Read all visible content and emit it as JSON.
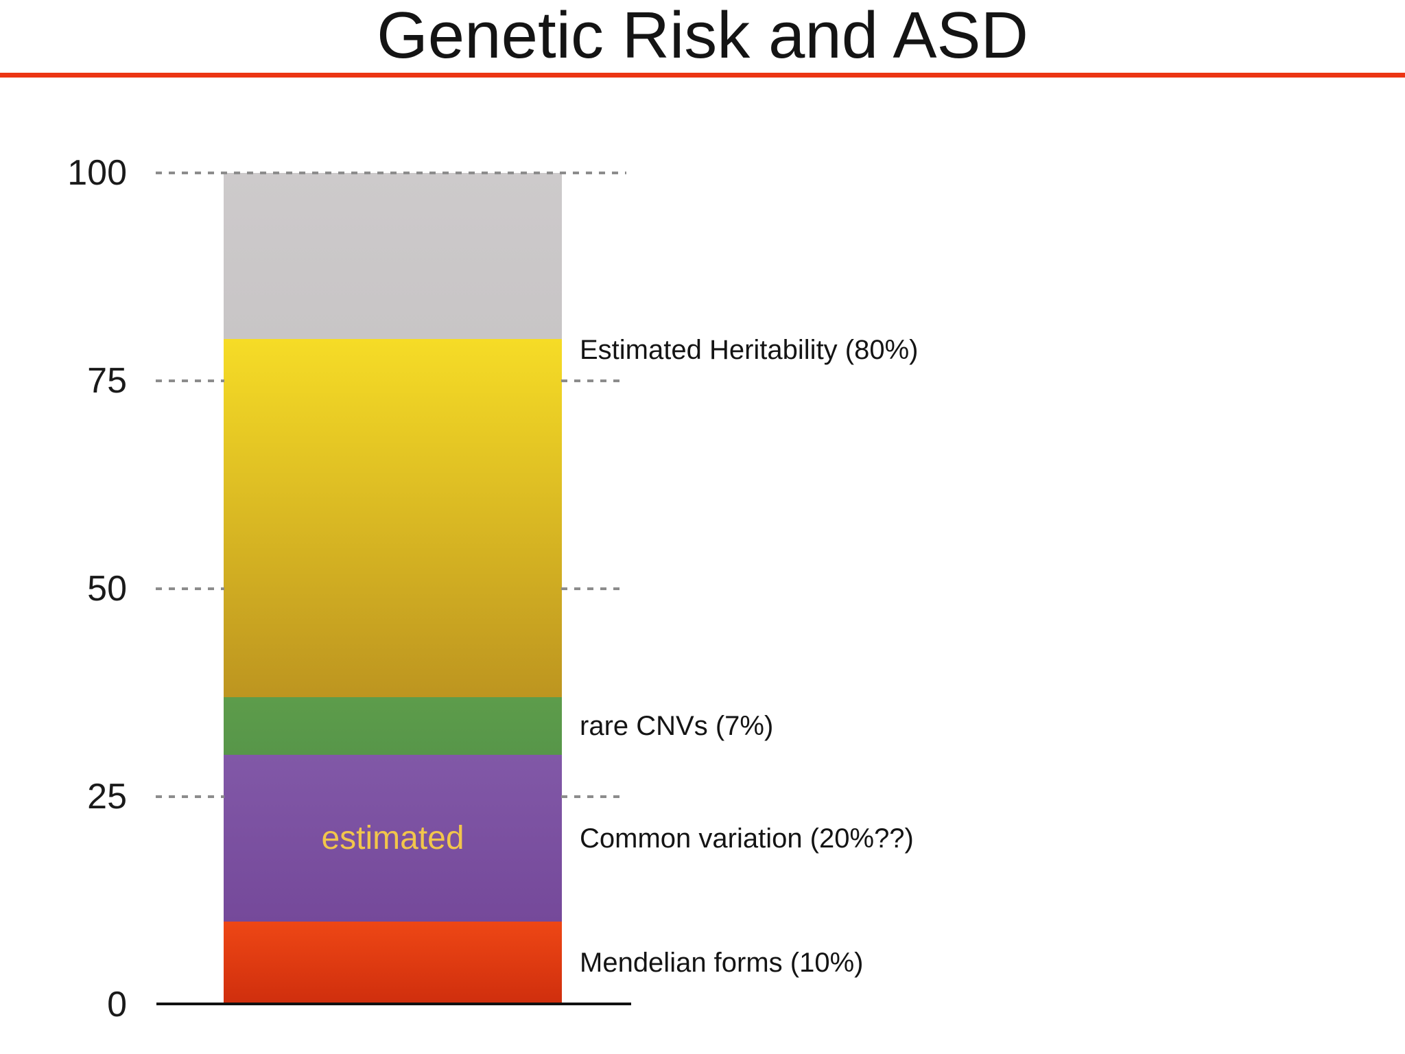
{
  "slide": {
    "accent_rule_color": "#EC3514",
    "background_color": "#FFFFFF"
  },
  "chart_data": {
    "type": "bar",
    "subtype": "single-stacked-bar",
    "title": "Genetic Risk and ASD",
    "xlabel": "",
    "ylabel": "",
    "ylim": [
      0,
      100
    ],
    "yticks": [
      0,
      25,
      50,
      75,
      100
    ],
    "grid": "dashed horizontal lines at yticks, left and right of bar; full dashed line at 100",
    "legend_position": "none",
    "annotation": {
      "text": "estimated",
      "color": "#F2C64B",
      "location": "inside common-variation segment"
    },
    "segments": [
      {
        "name": "mendelian-forms",
        "value": 10,
        "from": 0,
        "to": 10,
        "label": "Mendelian forms (10%)",
        "color_top": "#EE4715",
        "color_bottom": "#CF2E0D"
      },
      {
        "name": "common-variation",
        "value": 20,
        "from": 10,
        "to": 30,
        "label": "Common variation (20%??)",
        "color_top": "#8158A7",
        "color_bottom": "#75499A",
        "inner_text": "estimated",
        "inner_text_color": "#F2C64B"
      },
      {
        "name": "rare-cnvs",
        "value": 7,
        "from": 30,
        "to": 37,
        "label": "rare CNVs (7%)",
        "color_top": "#5D9C4B",
        "color_bottom": "#579649"
      },
      {
        "name": "estimated-heritability",
        "value": 43,
        "from": 37,
        "to": 80,
        "label": "Estimated Heritability (80%)",
        "label_anchor": "top",
        "color_top": "#F6DC26",
        "color_bottom": "#BD9520"
      },
      {
        "name": "unexplained",
        "value": 20,
        "from": 80,
        "to": 100,
        "label": "",
        "color_top": "#CDCACB",
        "color_bottom": "#C8C5C6"
      }
    ]
  }
}
